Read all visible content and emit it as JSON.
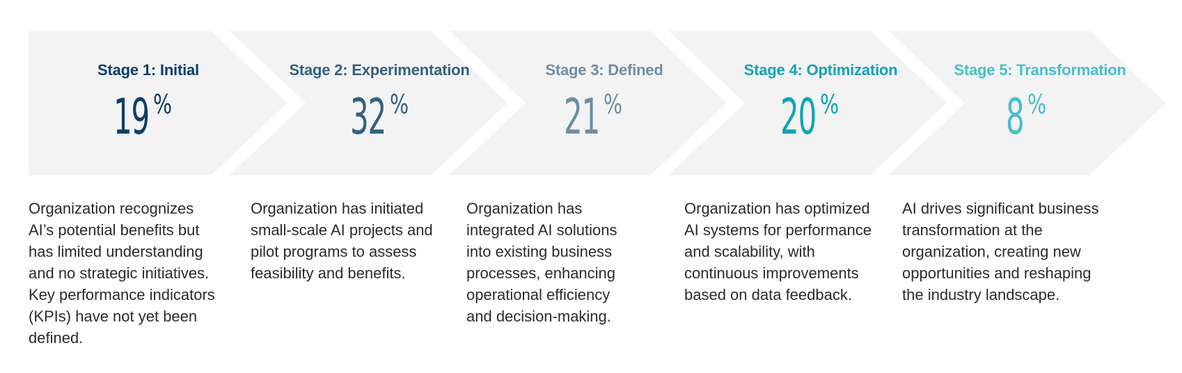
{
  "colors": {
    "chevron_fill": "#f3f3f3",
    "stage_1": "#0f3e66",
    "stage_2": "#34617f",
    "stage_3": "#6e8fa3",
    "stage_4": "#11a3b6",
    "stage_5": "#48bfcc",
    "body_text": "#2b2b2b"
  },
  "stages": [
    {
      "title": "Stage 1: Initial",
      "value": "19",
      "unit": "%",
      "description": "Organization recognizes AI’s potential benefits but has limited understanding and no strategic initiatives. Key performance indicators (KPIs) have not yet been defined."
    },
    {
      "title": "Stage 2: Experimentation",
      "value": "32",
      "unit": "%",
      "description": "Organization has initiated small-scale AI projects and pilot programs to assess feasibility and benefits."
    },
    {
      "title": "Stage 3: Defined",
      "value": "21",
      "unit": "%",
      "description": "Organization has integrated AI solutions into existing business processes, enhancing operational efficiency and decision-making."
    },
    {
      "title": "Stage 4: Optimization",
      "value": "20",
      "unit": "%",
      "description": "Organization has optimized AI systems for performance and scalability, with continuous improvements based on data feedback."
    },
    {
      "title": "Stage 5: Transformation",
      "value": "8",
      "unit": "%",
      "description": "AI drives significant business transformation at the organization, creating new opportunities and reshaping the industry landscape."
    }
  ]
}
